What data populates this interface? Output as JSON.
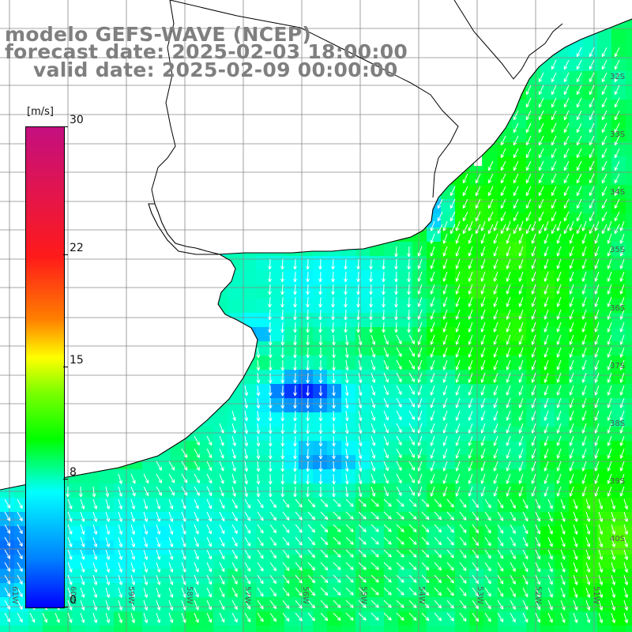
{
  "title": {
    "line1": "modelo GEFS-WAVE (NCEP)",
    "line2": "forecast date: 2025-02-03 18:00:00",
    "line3": "valid date: 2025-02-09 00:00:00"
  },
  "colorbar": {
    "unit": "[m/s]",
    "min": 0,
    "max": 30,
    "ticks": [
      "30",
      "22",
      "15",
      "8",
      "0"
    ],
    "tick_values": [
      30,
      22,
      15,
      8,
      0
    ],
    "colors": [
      "#0000ff",
      "#0080ff",
      "#00bfff",
      "#00ffff",
      "#00ff00",
      "#7fff00",
      "#ffff00",
      "#ff7f00",
      "#ff1a1a",
      "#c40f80"
    ]
  },
  "map": {
    "lat_labels": [
      "32S",
      "33S",
      "34S",
      "35S",
      "36S",
      "37S",
      "38S",
      "39S",
      "40S"
    ],
    "lon_labels": [
      "61W",
      "60W",
      "59W",
      "58W",
      "57W",
      "56W",
      "55W",
      "54W",
      "53W",
      "52W",
      "51W"
    ],
    "land_color": "#ffffff",
    "grid_color": "#888888",
    "arrow_color": "#ffffff"
  }
}
